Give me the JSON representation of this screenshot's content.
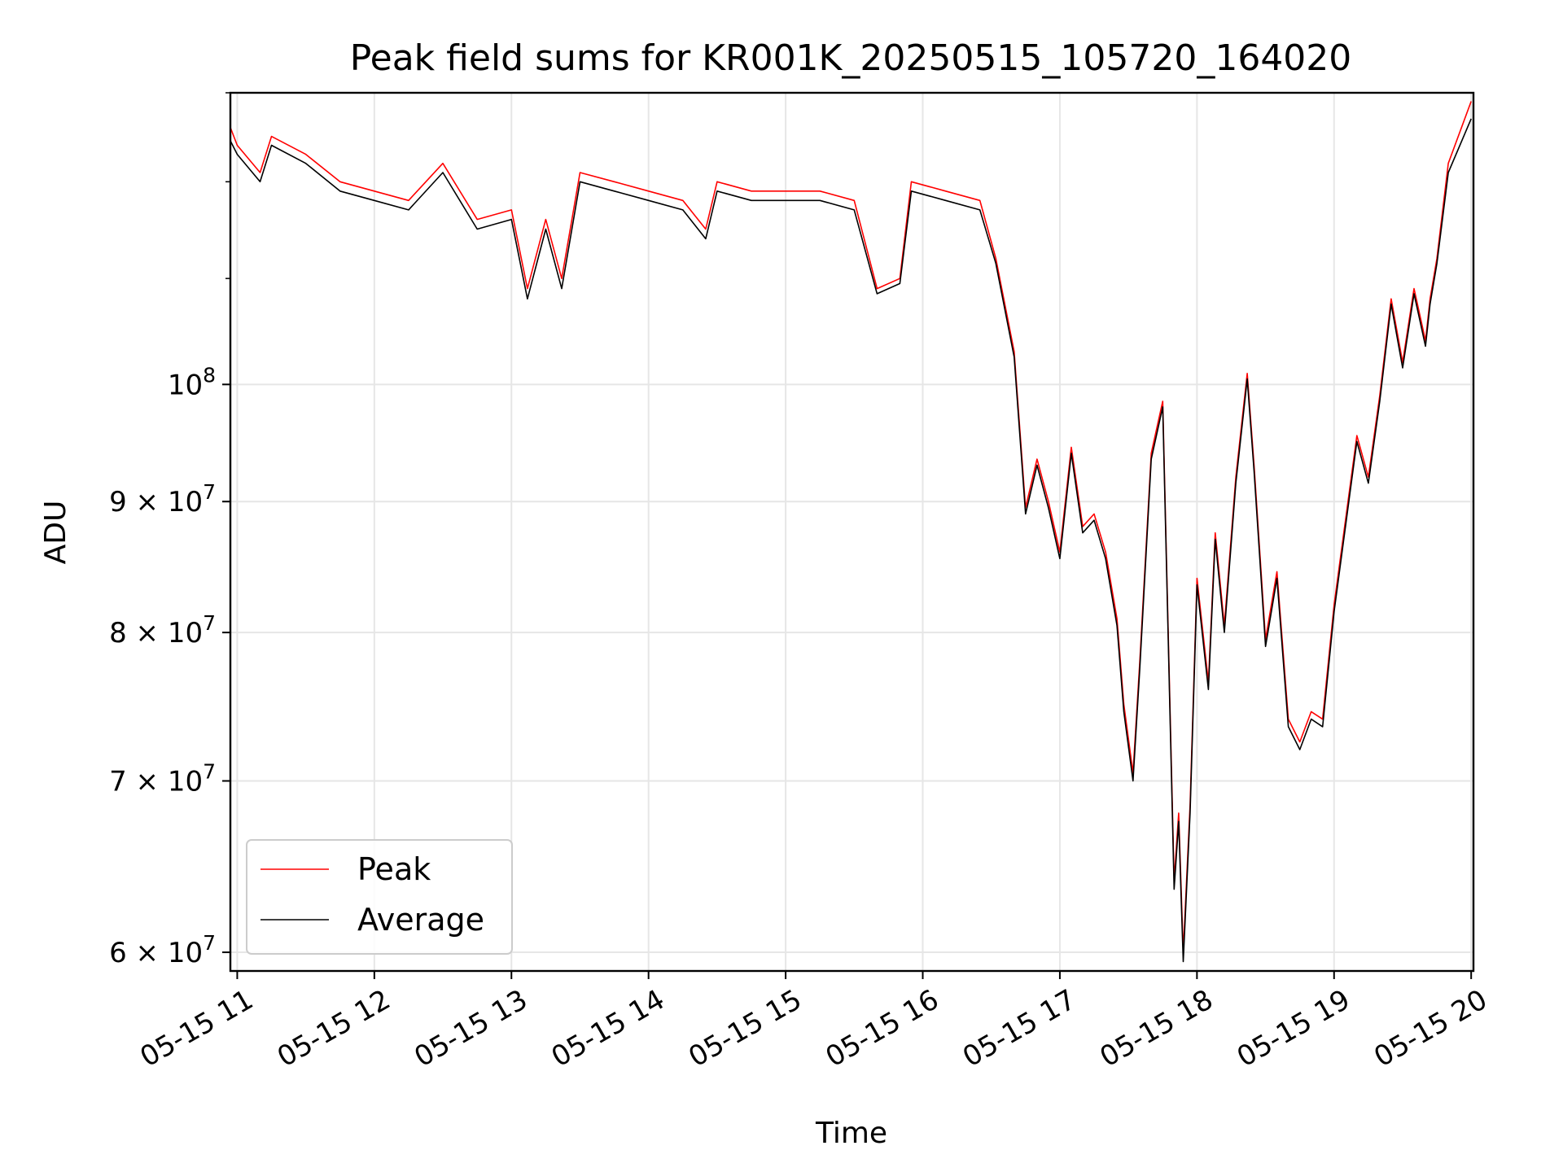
{
  "chart_data": {
    "type": "line",
    "title": "Peak field sums for KR001K_20250515_105720_164020",
    "xlabel": "Time",
    "ylabel": "ADU",
    "y_scale": "log",
    "ylim": [
      59000000,
      130000000
    ],
    "xlim": [
      "2025-05-15 10:57",
      "2025-05-15 20:01"
    ],
    "x_ticks": [
      {
        "t": "2025-05-15 11:00",
        "label": "05-15 11"
      },
      {
        "t": "2025-05-15 12:00",
        "label": "05-15 12"
      },
      {
        "t": "2025-05-15 13:00",
        "label": "05-15 13"
      },
      {
        "t": "2025-05-15 14:00",
        "label": "05-15 14"
      },
      {
        "t": "2025-05-15 15:00",
        "label": "05-15 15"
      },
      {
        "t": "2025-05-15 16:00",
        "label": "05-15 16"
      },
      {
        "t": "2025-05-15 17:00",
        "label": "05-15 17"
      },
      {
        "t": "2025-05-15 18:00",
        "label": "05-15 18"
      },
      {
        "t": "2025-05-15 19:00",
        "label": "05-15 19"
      },
      {
        "t": "2025-05-15 20:00",
        "label": "05-15 20"
      }
    ],
    "y_ticks": [
      {
        "value": 60000000,
        "mantissa": "6",
        "base": "10",
        "exp": "7"
      },
      {
        "value": 70000000,
        "mantissa": "7",
        "base": "10",
        "exp": "7"
      },
      {
        "value": 80000000,
        "mantissa": "8",
        "base": "10",
        "exp": "7"
      },
      {
        "value": 90000000,
        "mantissa": "9",
        "base": "10",
        "exp": "7"
      },
      {
        "value": 100000000,
        "mantissa": "",
        "base": "10",
        "exp": "8"
      }
    ],
    "grid": true,
    "legend_position": "lower-left",
    "series": [
      {
        "name": "Peak",
        "color": "#ff0000",
        "x": [
          "2025-05-15 10:57",
          "2025-05-15 11:00",
          "2025-05-15 11:10",
          "2025-05-15 11:15",
          "2025-05-15 11:30",
          "2025-05-15 11:45",
          "2025-05-15 12:00",
          "2025-05-15 12:15",
          "2025-05-15 12:30",
          "2025-05-15 12:45",
          "2025-05-15 13:00",
          "2025-05-15 13:07",
          "2025-05-15 13:15",
          "2025-05-15 13:22",
          "2025-05-15 13:30",
          "2025-05-15 13:45",
          "2025-05-15 14:00",
          "2025-05-15 14:15",
          "2025-05-15 14:25",
          "2025-05-15 14:30",
          "2025-05-15 14:45",
          "2025-05-15 15:00",
          "2025-05-15 15:15",
          "2025-05-15 15:30",
          "2025-05-15 15:40",
          "2025-05-15 15:50",
          "2025-05-15 15:55",
          "2025-05-15 16:10",
          "2025-05-15 16:25",
          "2025-05-15 16:32",
          "2025-05-15 16:40",
          "2025-05-15 16:45",
          "2025-05-15 16:50",
          "2025-05-15 16:55",
          "2025-05-15 17:00",
          "2025-05-15 17:05",
          "2025-05-15 17:10",
          "2025-05-15 17:15",
          "2025-05-15 17:20",
          "2025-05-15 17:25",
          "2025-05-15 17:28",
          "2025-05-15 17:32",
          "2025-05-15 17:35",
          "2025-05-15 17:40",
          "2025-05-15 17:45",
          "2025-05-15 17:50",
          "2025-05-15 17:52",
          "2025-05-15 17:54",
          "2025-05-15 17:57",
          "2025-05-15 18:00",
          "2025-05-15 18:05",
          "2025-05-15 18:08",
          "2025-05-15 18:12",
          "2025-05-15 18:17",
          "2025-05-15 18:22",
          "2025-05-15 18:25",
          "2025-05-15 18:30",
          "2025-05-15 18:35",
          "2025-05-15 18:40",
          "2025-05-15 18:45",
          "2025-05-15 18:50",
          "2025-05-15 18:55",
          "2025-05-15 19:00",
          "2025-05-15 19:05",
          "2025-05-15 19:10",
          "2025-05-15 19:15",
          "2025-05-15 19:20",
          "2025-05-15 19:25",
          "2025-05-15 19:30",
          "2025-05-15 19:35",
          "2025-05-15 19:40",
          "2025-05-15 19:42",
          "2025-05-15 19:45",
          "2025-05-15 19:50",
          "2025-05-15 20:00"
        ],
        "y": [
          126000000,
          124000000,
          121000000,
          125000000,
          123000000,
          120000000,
          119000000,
          118000000,
          122000000,
          116000000,
          117000000,
          109000000,
          116000000,
          110000000,
          121000000,
          120000000,
          119000000,
          118000000,
          115000000,
          120000000,
          119000000,
          119000000,
          119000000,
          118000000,
          109000000,
          110000000,
          120000000,
          119000000,
          118000000,
          112000000,
          103000000,
          89500000,
          93500000,
          90000000,
          86000000,
          94500000,
          88000000,
          89000000,
          86000000,
          81000000,
          75000000,
          70500000,
          78000000,
          94000000,
          98500000,
          64000000,
          68000000,
          60000000,
          68500000,
          84000000,
          76500000,
          87500000,
          80500000,
          92000000,
          101000000,
          93000000,
          79500000,
          84500000,
          74000000,
          72500000,
          74500000,
          74000000,
          82000000,
          88500000,
          95500000,
          92000000,
          99000000,
          108000000,
          102000000,
          109000000,
          104000000,
          108000000,
          112000000,
          122000000,
          129000000
        ]
      },
      {
        "name": "Average",
        "color": "#000000",
        "x": [
          "2025-05-15 10:57",
          "2025-05-15 11:00",
          "2025-05-15 11:10",
          "2025-05-15 11:15",
          "2025-05-15 11:30",
          "2025-05-15 11:45",
          "2025-05-15 12:00",
          "2025-05-15 12:15",
          "2025-05-15 12:30",
          "2025-05-15 12:45",
          "2025-05-15 13:00",
          "2025-05-15 13:07",
          "2025-05-15 13:15",
          "2025-05-15 13:22",
          "2025-05-15 13:30",
          "2025-05-15 13:45",
          "2025-05-15 14:00",
          "2025-05-15 14:15",
          "2025-05-15 14:25",
          "2025-05-15 14:30",
          "2025-05-15 14:45",
          "2025-05-15 15:00",
          "2025-05-15 15:15",
          "2025-05-15 15:30",
          "2025-05-15 15:40",
          "2025-05-15 15:50",
          "2025-05-15 15:55",
          "2025-05-15 16:10",
          "2025-05-15 16:25",
          "2025-05-15 16:32",
          "2025-05-15 16:40",
          "2025-05-15 16:45",
          "2025-05-15 16:50",
          "2025-05-15 16:55",
          "2025-05-15 17:00",
          "2025-05-15 17:05",
          "2025-05-15 17:10",
          "2025-05-15 17:15",
          "2025-05-15 17:20",
          "2025-05-15 17:25",
          "2025-05-15 17:28",
          "2025-05-15 17:32",
          "2025-05-15 17:35",
          "2025-05-15 17:40",
          "2025-05-15 17:45",
          "2025-05-15 17:50",
          "2025-05-15 17:52",
          "2025-05-15 17:54",
          "2025-05-15 17:57",
          "2025-05-15 18:00",
          "2025-05-15 18:05",
          "2025-05-15 18:08",
          "2025-05-15 18:12",
          "2025-05-15 18:17",
          "2025-05-15 18:22",
          "2025-05-15 18:25",
          "2025-05-15 18:30",
          "2025-05-15 18:35",
          "2025-05-15 18:40",
          "2025-05-15 18:45",
          "2025-05-15 18:50",
          "2025-05-15 18:55",
          "2025-05-15 19:00",
          "2025-05-15 19:05",
          "2025-05-15 19:10",
          "2025-05-15 19:15",
          "2025-05-15 19:20",
          "2025-05-15 19:25",
          "2025-05-15 19:30",
          "2025-05-15 19:35",
          "2025-05-15 19:40",
          "2025-05-15 19:42",
          "2025-05-15 19:45",
          "2025-05-15 19:50",
          "2025-05-15 20:00"
        ],
        "y": [
          124500000,
          123000000,
          120000000,
          124000000,
          122000000,
          119000000,
          118000000,
          117000000,
          121000000,
          115000000,
          116000000,
          108000000,
          115000000,
          109000000,
          120000000,
          119000000,
          118000000,
          117000000,
          114000000,
          119000000,
          118000000,
          118000000,
          118000000,
          117000000,
          108500000,
          109500000,
          119000000,
          118000000,
          117000000,
          111500000,
          102500000,
          89000000,
          93000000,
          89500000,
          85500000,
          94000000,
          87500000,
          88500000,
          85500000,
          80500000,
          74500000,
          70000000,
          77500000,
          93500000,
          98000000,
          63500000,
          67500000,
          59500000,
          68000000,
          83500000,
          76000000,
          87000000,
          80000000,
          91500000,
          100500000,
          92500000,
          79000000,
          84000000,
          73500000,
          72000000,
          74000000,
          73500000,
          81500000,
          88000000,
          95000000,
          91500000,
          98500000,
          107500000,
          101500000,
          108500000,
          103500000,
          107500000,
          111500000,
          121000000,
          127000000
        ]
      }
    ]
  }
}
